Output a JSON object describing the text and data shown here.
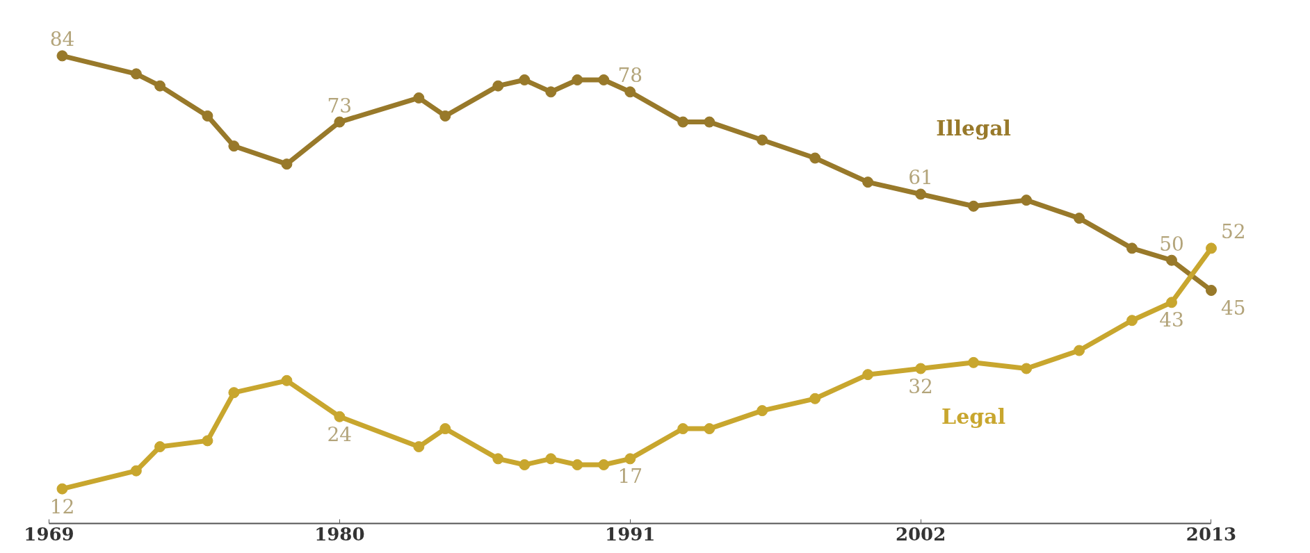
{
  "chart_data": {
    "type": "line",
    "x": [
      1969.5,
      1972.3,
      1973.2,
      1975,
      1976,
      1978,
      1980,
      1983,
      1984,
      1986,
      1987,
      1988,
      1989,
      1990,
      1991,
      1993,
      1994,
      1996,
      1998,
      2000,
      2002,
      2004,
      2006,
      2008,
      2010,
      2011.5,
      2013
    ],
    "series": [
      {
        "name": "Illegal",
        "color": "#98792a",
        "values": [
          84,
          81,
          79,
          74,
          69,
          66,
          73,
          77,
          74,
          79,
          80,
          78,
          80,
          80,
          78,
          73,
          73,
          70,
          67,
          63,
          61,
          59,
          60,
          57,
          52,
          50,
          45
        ],
        "value_labels": [
          "84",
          null,
          null,
          null,
          null,
          null,
          "73",
          null,
          null,
          null,
          null,
          null,
          null,
          null,
          "78",
          null,
          null,
          null,
          null,
          null,
          "61",
          null,
          null,
          null,
          null,
          "50",
          "45"
        ]
      },
      {
        "name": "Legal",
        "color": "#c8a62e",
        "values": [
          12,
          15,
          19,
          20,
          28,
          30,
          24,
          19,
          22,
          17,
          16,
          17,
          16,
          16,
          17,
          22,
          22,
          25,
          27,
          31,
          32,
          33,
          32,
          35,
          40,
          43,
          52
        ],
        "value_labels": [
          "12",
          null,
          null,
          null,
          null,
          null,
          "24",
          null,
          null,
          null,
          null,
          null,
          null,
          null,
          "17",
          null,
          null,
          null,
          null,
          null,
          "32",
          null,
          null,
          null,
          null,
          "43",
          "52"
        ]
      }
    ],
    "xlim": [
      1969,
      2013
    ],
    "xticks": [
      1969,
      1980,
      1991,
      2002,
      2013
    ],
    "tick_labels": "x",
    "grid": false,
    "legend": false,
    "marker": "circle",
    "line_style": "solid"
  }
}
